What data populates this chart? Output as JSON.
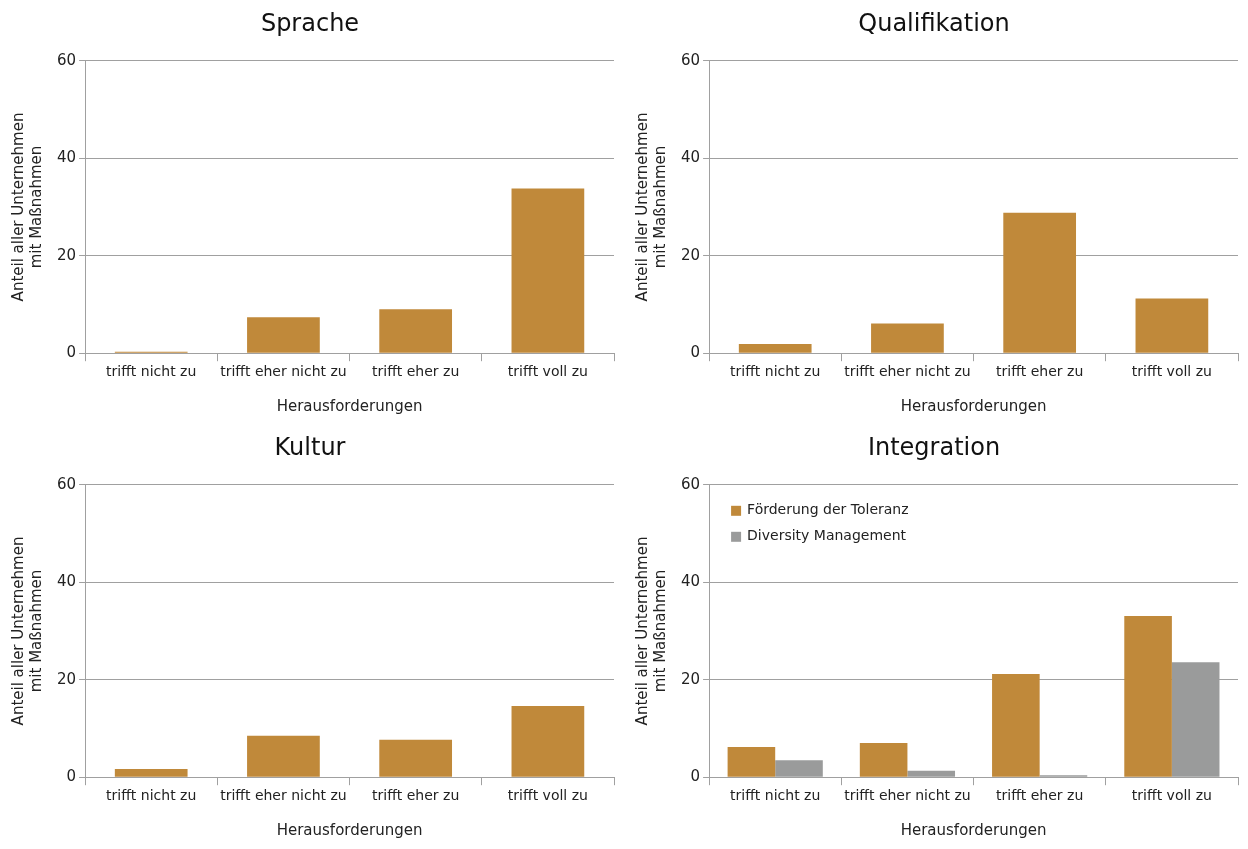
{
  "chart_data": [
    {
      "type": "bar",
      "title": "Sprache",
      "xlabel": "Herausforderungen",
      "ylabel": "Anteil aller Unternehmen mit Maßnahmen",
      "categories": [
        "trifft nicht zu",
        "trifft eher nicht zu",
        "trifft eher zu",
        "trifft voll zu"
      ],
      "values": [
        0.3,
        7.4,
        9.0,
        33.8
      ],
      "color": "#c0893a",
      "ylim": [
        0,
        60
      ],
      "yticks": [
        0,
        20,
        40,
        60
      ],
      "grid": "y"
    },
    {
      "type": "bar",
      "title": "Qualifikation",
      "xlabel": "Herausforderungen",
      "ylabel": "Anteil aller Unternehmen mit Maßnahmen",
      "categories": [
        "trifft nicht zu",
        "trifft eher nicht zu",
        "trifft eher zu",
        "trifft voll zu"
      ],
      "values": [
        1.9,
        6.1,
        28.8,
        11.2
      ],
      "color": "#c0893a",
      "ylim": [
        0,
        60
      ],
      "yticks": [
        0,
        20,
        40,
        60
      ],
      "grid": "y"
    },
    {
      "type": "bar",
      "title": "Kultur",
      "xlabel": "Herausforderungen",
      "ylabel": "Anteil aller Unternehmen mit Maßnahmen",
      "categories": [
        "trifft nicht zu",
        "trifft eher nicht zu",
        "trifft eher zu",
        "trifft voll zu"
      ],
      "values": [
        1.7,
        8.5,
        7.7,
        14.6
      ],
      "color": "#c0893a",
      "ylim": [
        0,
        60
      ],
      "yticks": [
        0,
        20,
        40,
        60
      ],
      "grid": "y"
    },
    {
      "type": "bar",
      "title": "Integration",
      "xlabel": "Herausforderungen",
      "ylabel": "Anteil aller Unternehmen mit Maßnahmen",
      "categories": [
        "trifft nicht zu",
        "trifft eher nicht zu",
        "trifft eher zu",
        "trifft voll zu"
      ],
      "series": [
        {
          "name": "Förderung der Toleranz",
          "color": "#c0893a",
          "values": [
            6.2,
            7.0,
            21.2,
            33.1
          ]
        },
        {
          "name": "Diversity Management",
          "color": "#9a9b9b",
          "values": [
            3.5,
            1.3,
            0.4,
            23.6
          ]
        }
      ],
      "ylim": [
        0,
        60
      ],
      "yticks": [
        0,
        20,
        40,
        60
      ],
      "grid": "y",
      "legend": "top left"
    }
  ]
}
